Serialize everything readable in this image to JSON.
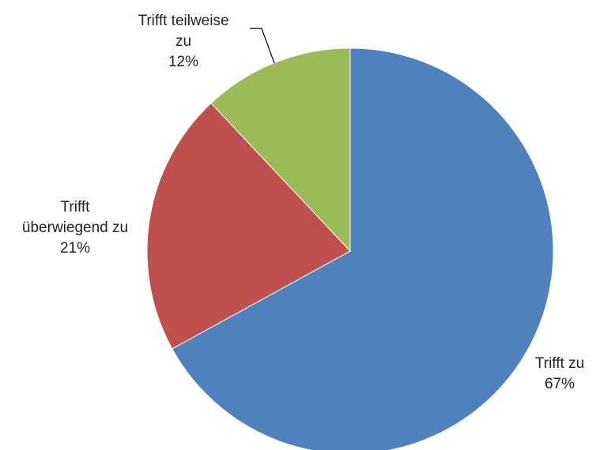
{
  "chart_data": {
    "type": "pie",
    "title": "",
    "slices": [
      {
        "label_lines": [
          "Trifft zu"
        ],
        "percent_label": "67%",
        "value": 67,
        "color": "#4F81BD"
      },
      {
        "label_lines": [
          "Trifft",
          "überwiegend zu"
        ],
        "percent_label": "21%",
        "value": 21,
        "color": "#C0504D"
      },
      {
        "label_lines": [
          "Trifft teilweise",
          "zu"
        ],
        "percent_label": "12%",
        "value": 12,
        "color": "#9BBB59"
      }
    ],
    "start_angle": "12 o'clock",
    "direction": "clockwise",
    "legend": "none"
  }
}
